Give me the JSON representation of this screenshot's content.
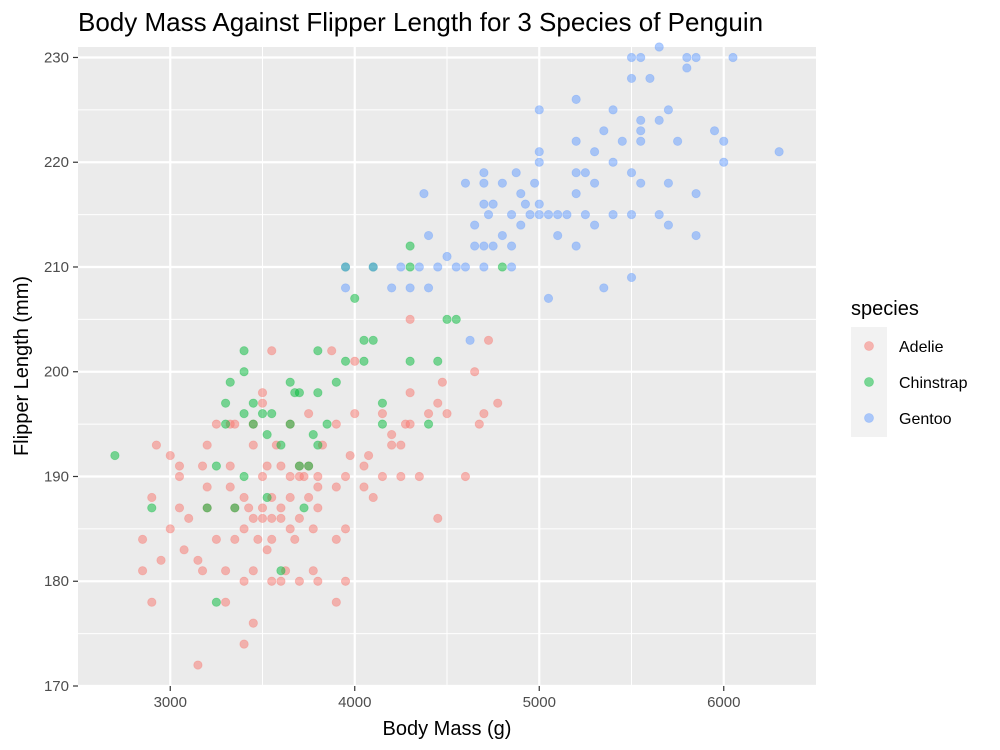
{
  "chart_data": {
    "type": "scatter",
    "title": "Body Mass Against Flipper Length for 3 Species of Penguin",
    "xlabel": "Body Mass (g)",
    "ylabel": "Flipper Length (mm)",
    "xlim": [
      2500,
      6500
    ],
    "ylim": [
      170,
      231
    ],
    "x_ticks": [
      "3000",
      "4000",
      "5000",
      "6000"
    ],
    "y_ticks": [
      "170",
      "180",
      "190",
      "200",
      "210",
      "220",
      "230"
    ],
    "grid": true,
    "legend": {
      "title": "species",
      "position": "right"
    },
    "series": [
      {
        "name": "Adelie",
        "color": "#F8766D",
        "points": [
          [
            2850,
            181
          ],
          [
            2850,
            184
          ],
          [
            2900,
            178
          ],
          [
            2900,
            188
          ],
          [
            2925,
            193
          ],
          [
            2950,
            182
          ],
          [
            3000,
            185
          ],
          [
            3000,
            192
          ],
          [
            3050,
            187
          ],
          [
            3050,
            190
          ],
          [
            3050,
            191
          ],
          [
            3075,
            183
          ],
          [
            3100,
            186
          ],
          [
            3150,
            172
          ],
          [
            3150,
            182
          ],
          [
            3175,
            181
          ],
          [
            3175,
            191
          ],
          [
            3200,
            187
          ],
          [
            3200,
            189
          ],
          [
            3200,
            193
          ],
          [
            3250,
            195
          ],
          [
            3250,
            184
          ],
          [
            3300,
            178
          ],
          [
            3300,
            181
          ],
          [
            3325,
            189
          ],
          [
            3325,
            191
          ],
          [
            3325,
            195
          ],
          [
            3350,
            184
          ],
          [
            3350,
            187
          ],
          [
            3350,
            195
          ],
          [
            3400,
            174
          ],
          [
            3400,
            180
          ],
          [
            3400,
            185
          ],
          [
            3400,
            188
          ],
          [
            3425,
            187
          ],
          [
            3450,
            176
          ],
          [
            3450,
            181
          ],
          [
            3450,
            186
          ],
          [
            3450,
            193
          ],
          [
            3450,
            195
          ],
          [
            3475,
            184
          ],
          [
            3500,
            186
          ],
          [
            3500,
            187
          ],
          [
            3500,
            190
          ],
          [
            3500,
            197
          ],
          [
            3500,
            198
          ],
          [
            3525,
            183
          ],
          [
            3525,
            191
          ],
          [
            3550,
            180
          ],
          [
            3550,
            184
          ],
          [
            3550,
            186
          ],
          [
            3550,
            188
          ],
          [
            3550,
            202
          ],
          [
            3575,
            193
          ],
          [
            3600,
            180
          ],
          [
            3600,
            186
          ],
          [
            3600,
            187
          ],
          [
            3600,
            191
          ],
          [
            3625,
            181
          ],
          [
            3650,
            185
          ],
          [
            3650,
            188
          ],
          [
            3650,
            190
          ],
          [
            3650,
            195
          ],
          [
            3675,
            184
          ],
          [
            3700,
            180
          ],
          [
            3700,
            186
          ],
          [
            3700,
            190
          ],
          [
            3700,
            191
          ],
          [
            3725,
            190
          ],
          [
            3750,
            188
          ],
          [
            3750,
            191
          ],
          [
            3750,
            196
          ],
          [
            3775,
            181
          ],
          [
            3775,
            185
          ],
          [
            3800,
            180
          ],
          [
            3800,
            187
          ],
          [
            3800,
            189
          ],
          [
            3800,
            190
          ],
          [
            3825,
            193
          ],
          [
            3875,
            202
          ],
          [
            3900,
            178
          ],
          [
            3900,
            184
          ],
          [
            3900,
            189
          ],
          [
            3900,
            195
          ],
          [
            3950,
            180
          ],
          [
            3950,
            185
          ],
          [
            3950,
            190
          ],
          [
            3975,
            192
          ],
          [
            4000,
            196
          ],
          [
            4000,
            201
          ],
          [
            4050,
            189
          ],
          [
            4050,
            191
          ],
          [
            4075,
            192
          ],
          [
            4100,
            188
          ],
          [
            4150,
            190
          ],
          [
            4150,
            196
          ],
          [
            4200,
            193
          ],
          [
            4200,
            194
          ],
          [
            4250,
            190
          ],
          [
            4250,
            193
          ],
          [
            4275,
            195
          ],
          [
            4300,
            195
          ],
          [
            4300,
            198
          ],
          [
            4300,
            205
          ],
          [
            4350,
            190
          ],
          [
            4400,
            196
          ],
          [
            4450,
            186
          ],
          [
            4450,
            197
          ],
          [
            4475,
            199
          ],
          [
            4500,
            196
          ],
          [
            4600,
            190
          ],
          [
            4650,
            200
          ],
          [
            4675,
            195
          ],
          [
            4700,
            196
          ],
          [
            4725,
            203
          ],
          [
            4775,
            197
          ]
        ]
      },
      {
        "name": "Chinstrap",
        "color": "#00BA38",
        "points": [
          [
            2700,
            192
          ],
          [
            2900,
            187
          ],
          [
            3200,
            187
          ],
          [
            3250,
            178
          ],
          [
            3250,
            191
          ],
          [
            3300,
            195
          ],
          [
            3300,
            197
          ],
          [
            3325,
            199
          ],
          [
            3350,
            187
          ],
          [
            3400,
            190
          ],
          [
            3400,
            196
          ],
          [
            3400,
            200
          ],
          [
            3400,
            202
          ],
          [
            3450,
            195
          ],
          [
            3450,
            197
          ],
          [
            3500,
            196
          ],
          [
            3525,
            188
          ],
          [
            3525,
            194
          ],
          [
            3550,
            196
          ],
          [
            3600,
            181
          ],
          [
            3600,
            193
          ],
          [
            3650,
            195
          ],
          [
            3650,
            199
          ],
          [
            3675,
            198
          ],
          [
            3700,
            191
          ],
          [
            3700,
            198
          ],
          [
            3725,
            187
          ],
          [
            3750,
            191
          ],
          [
            3775,
            194
          ],
          [
            3800,
            193
          ],
          [
            3800,
            198
          ],
          [
            3800,
            202
          ],
          [
            3850,
            195
          ],
          [
            3900,
            199
          ],
          [
            3950,
            201
          ],
          [
            3950,
            210
          ],
          [
            4000,
            207
          ],
          [
            4050,
            201
          ],
          [
            4050,
            203
          ],
          [
            4100,
            203
          ],
          [
            4100,
            210
          ],
          [
            4150,
            195
          ],
          [
            4150,
            197
          ],
          [
            4300,
            201
          ],
          [
            4300,
            210
          ],
          [
            4300,
            212
          ],
          [
            4400,
            195
          ],
          [
            4450,
            201
          ],
          [
            4500,
            205
          ],
          [
            4550,
            205
          ],
          [
            4800,
            210
          ]
        ]
      },
      {
        "name": "Gentoo",
        "color": "#619CFF",
        "points": [
          [
            3950,
            208
          ],
          [
            3950,
            210
          ],
          [
            4100,
            210
          ],
          [
            4200,
            208
          ],
          [
            4250,
            210
          ],
          [
            4300,
            208
          ],
          [
            4350,
            210
          ],
          [
            4375,
            217
          ],
          [
            4400,
            208
          ],
          [
            4400,
            213
          ],
          [
            4450,
            210
          ],
          [
            4500,
            211
          ],
          [
            4550,
            210
          ],
          [
            4600,
            210
          ],
          [
            4600,
            218
          ],
          [
            4625,
            203
          ],
          [
            4650,
            212
          ],
          [
            4650,
            214
          ],
          [
            4700,
            210
          ],
          [
            4700,
            212
          ],
          [
            4700,
            216
          ],
          [
            4700,
            218
          ],
          [
            4700,
            219
          ],
          [
            4725,
            215
          ],
          [
            4750,
            212
          ],
          [
            4750,
            216
          ],
          [
            4800,
            213
          ],
          [
            4800,
            218
          ],
          [
            4850,
            210
          ],
          [
            4850,
            212
          ],
          [
            4850,
            215
          ],
          [
            4875,
            219
          ],
          [
            4900,
            214
          ],
          [
            4900,
            217
          ],
          [
            4925,
            216
          ],
          [
            4950,
            215
          ],
          [
            4975,
            218
          ],
          [
            5000,
            215
          ],
          [
            5000,
            216
          ],
          [
            5000,
            220
          ],
          [
            5000,
            221
          ],
          [
            5000,
            225
          ],
          [
            5050,
            207
          ],
          [
            5050,
            215
          ],
          [
            5100,
            213
          ],
          [
            5100,
            215
          ],
          [
            5150,
            215
          ],
          [
            5200,
            212
          ],
          [
            5200,
            217
          ],
          [
            5200,
            219
          ],
          [
            5200,
            222
          ],
          [
            5200,
            226
          ],
          [
            5250,
            215
          ],
          [
            5250,
            219
          ],
          [
            5300,
            214
          ],
          [
            5300,
            218
          ],
          [
            5300,
            221
          ],
          [
            5350,
            208
          ],
          [
            5350,
            223
          ],
          [
            5400,
            215
          ],
          [
            5400,
            220
          ],
          [
            5400,
            225
          ],
          [
            5450,
            222
          ],
          [
            5500,
            209
          ],
          [
            5500,
            215
          ],
          [
            5500,
            219
          ],
          [
            5500,
            228
          ],
          [
            5500,
            230
          ],
          [
            5550,
            218
          ],
          [
            5550,
            222
          ],
          [
            5550,
            223
          ],
          [
            5550,
            224
          ],
          [
            5550,
            230
          ],
          [
            5600,
            228
          ],
          [
            5650,
            215
          ],
          [
            5650,
            224
          ],
          [
            5650,
            231
          ],
          [
            5700,
            214
          ],
          [
            5700,
            218
          ],
          [
            5700,
            225
          ],
          [
            5750,
            222
          ],
          [
            5800,
            229
          ],
          [
            5800,
            230
          ],
          [
            5850,
            213
          ],
          [
            5850,
            217
          ],
          [
            5850,
            230
          ],
          [
            5950,
            223
          ],
          [
            6000,
            220
          ],
          [
            6000,
            222
          ],
          [
            6050,
            230
          ],
          [
            6300,
            221
          ]
        ]
      }
    ]
  }
}
